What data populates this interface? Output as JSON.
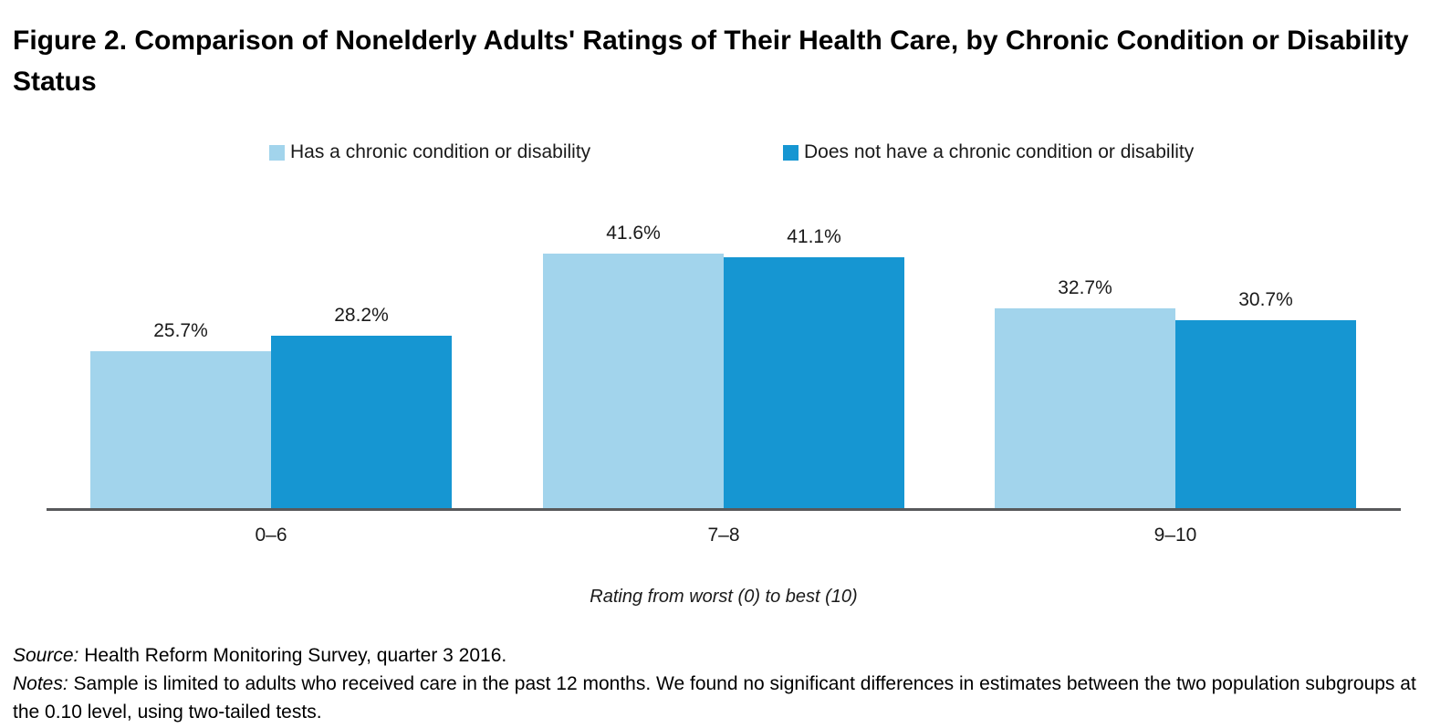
{
  "figure": {
    "title": "Figure 2. Comparison of Nonelderly Adults' Ratings of Their Health Care, by Chronic Condition or Disability Status",
    "source_label": "Source:",
    "source_text": " Health Reform Monitoring Survey, quarter 3 2016.",
    "notes_label": "Notes:",
    "notes_text": " Sample is limited to adults who received care in the past 12 months. We found no significant differences in estimates between the two population subgroups at the 0.10 level, using two-tailed tests."
  },
  "colors": {
    "series_light": "#A2D4EC",
    "series_dark": "#1696D2",
    "axis_line": "#58595B",
    "text": "#000000"
  },
  "chart_data": {
    "type": "bar",
    "categories": [
      "0–6",
      "7–8",
      "9–10"
    ],
    "series": [
      {
        "name": "Has a chronic condition or disability",
        "color": "#A2D4EC",
        "values": [
          25.7,
          41.6,
          32.7
        ],
        "labels": [
          "25.7%",
          "41.6%",
          "32.7%"
        ]
      },
      {
        "name": "Does not have a chronic condition or disability",
        "color": "#1696D2",
        "values": [
          28.2,
          41.1,
          30.7
        ],
        "labels": [
          "28.2%",
          "41.1%",
          "30.7%"
        ]
      }
    ],
    "xlabel": "Rating from worst (0) to best (10)",
    "ylabel": "",
    "ylim": [
      0,
      56
    ],
    "grid": false,
    "legend_position": "top",
    "data_labels": true
  }
}
